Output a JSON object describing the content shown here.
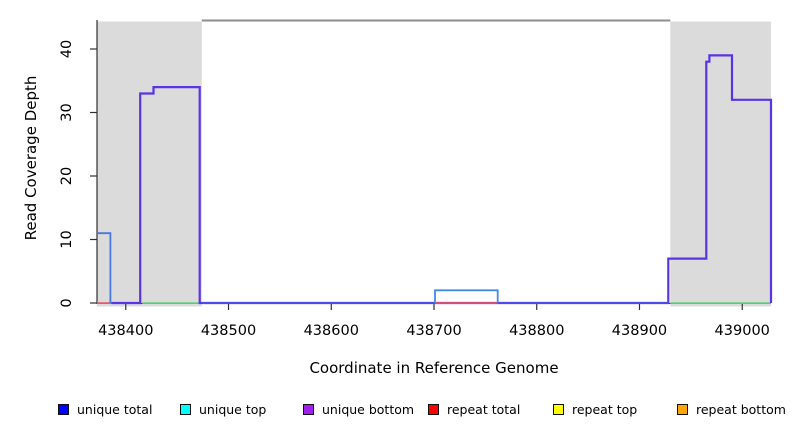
{
  "figure": {
    "kind": "read coverage step plot with shaded repeat regions"
  },
  "colors": {
    "shade": "#DBDBDB",
    "frame": "#303030",
    "top_line": "#8E8E8E",
    "tick": "#303030"
  },
  "legend": {
    "items": [
      {
        "label": "unique total",
        "color": "#0000FF"
      },
      {
        "label": "unique top",
        "color": "#00FFFF"
      },
      {
        "label": "unique bottom",
        "color": "#A020F0"
      },
      {
        "label": "repeat total",
        "color": "#FF0000"
      },
      {
        "label": "repeat top",
        "color": "#FFFF00"
      },
      {
        "label": "repeat bottom",
        "color": "#FFA500"
      }
    ]
  },
  "chart_data": {
    "type": "step-line",
    "title": "",
    "xlabel": "Coordinate in Reference Genome",
    "ylabel": "Read Coverage Depth",
    "x_range": [
      438372,
      439028
    ],
    "y_range": [
      0,
      44
    ],
    "x_ticks": [
      438400,
      438500,
      438600,
      438700,
      438800,
      438900,
      439000
    ],
    "y_ticks": [
      0,
      10,
      20,
      30,
      40
    ],
    "grid": false,
    "legend_position": "bottom",
    "shaded_regions": [
      {
        "from": 438372,
        "to": 438474
      },
      {
        "from": 438930,
        "to": 439028
      }
    ],
    "top_boundary_line": {
      "from": 438474,
      "to": 438930
    },
    "series": [
      {
        "name": "repeat-total-zero-left",
        "color": "#E8697A",
        "width": 1.8,
        "points": [
          [
            438372,
            0
          ],
          [
            438412,
            0
          ]
        ]
      },
      {
        "name": "zero-coverage-green-left",
        "color": "#74D48E",
        "width": 1.8,
        "points": [
          [
            438416,
            0
          ],
          [
            438474,
            0
          ]
        ]
      },
      {
        "name": "zero-coverage-green-right",
        "color": "#74D48E",
        "width": 1.8,
        "points": [
          [
            438930,
            0
          ],
          [
            439028,
            0
          ]
        ]
      },
      {
        "name": "unique-bottom-steps",
        "color": "#5B33E6",
        "width": 2.2,
        "points": [
          [
            438386,
            0
          ],
          [
            438414,
            0
          ],
          [
            438414,
            33
          ],
          [
            438427,
            33
          ],
          [
            438427,
            34
          ],
          [
            438472,
            34
          ],
          [
            438472,
            0
          ],
          [
            438928,
            0
          ],
          [
            438928,
            7
          ],
          [
            438965,
            7
          ],
          [
            438965,
            38
          ],
          [
            438968,
            38
          ],
          [
            438968,
            39
          ],
          [
            438990,
            39
          ],
          [
            438990,
            32
          ],
          [
            439028,
            32
          ],
          [
            439028,
            0
          ]
        ]
      },
      {
        "name": "repeat-total-zero-mid",
        "color": "#E05566",
        "width": 1.8,
        "points": [
          [
            438701,
            0
          ],
          [
            438762,
            0
          ]
        ]
      },
      {
        "name": "unique-total-left-step",
        "color": "#4677E0",
        "width": 1.8,
        "points": [
          [
            438372,
            11
          ],
          [
            438385,
            11
          ],
          [
            438385,
            0
          ]
        ]
      },
      {
        "name": "unique-total-baseline-1",
        "color": "#4A52E8",
        "width": 1.6,
        "points": [
          [
            438474,
            0
          ],
          [
            438701,
            0
          ]
        ]
      },
      {
        "name": "unique-total-bump",
        "color": "#3F8BE8",
        "width": 1.8,
        "points": [
          [
            438701,
            0
          ],
          [
            438701,
            2
          ],
          [
            438762,
            2
          ],
          [
            438762,
            0
          ]
        ]
      },
      {
        "name": "unique-total-baseline-2",
        "color": "#4A52E8",
        "width": 1.6,
        "points": [
          [
            438762,
            0
          ],
          [
            438928,
            0
          ]
        ]
      }
    ]
  }
}
